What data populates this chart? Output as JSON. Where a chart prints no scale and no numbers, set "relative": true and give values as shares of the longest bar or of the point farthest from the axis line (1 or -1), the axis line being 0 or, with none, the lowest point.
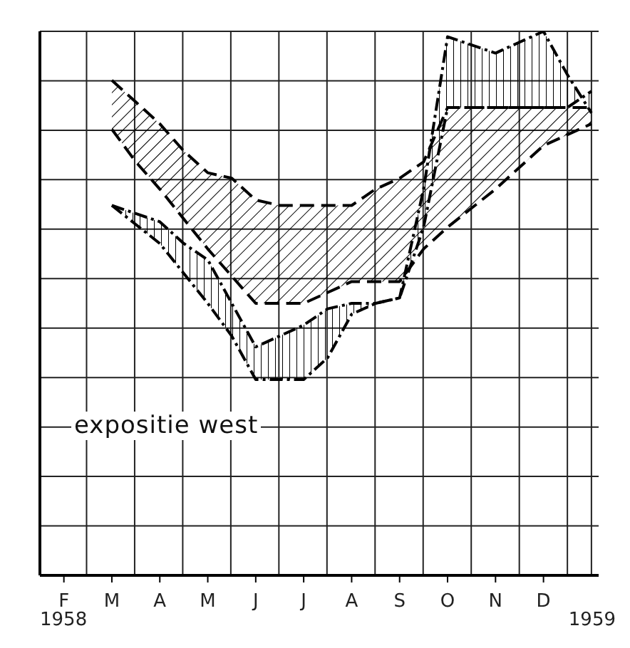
{
  "chart_data": {
    "type": "line",
    "relative": true,
    "grid": true,
    "marker": "none",
    "categories": [
      "F",
      null,
      "M",
      null,
      "A",
      null,
      "M",
      null,
      "J",
      null,
      "J",
      null,
      "A",
      null,
      "S",
      null,
      "O",
      null,
      "N",
      null,
      "D",
      null,
      null
    ],
    "series": [
      {
        "color": "#000000",
        "line_style": "dashed",
        "values": [
          null,
          null,
          0.91,
          0.87,
          0.83,
          0.78,
          0.74,
          0.73,
          0.69,
          0.68,
          0.68,
          0.68,
          0.68,
          0.71,
          0.73,
          0.76,
          0.86,
          0.86,
          0.86,
          0.86,
          0.86,
          0.86,
          0.86
        ],
        "upper": [
          null,
          null,
          0.91,
          0.87,
          0.83,
          0.78,
          0.74,
          0.73,
          0.69,
          0.68,
          0.68,
          0.68,
          0.68,
          0.71,
          0.73,
          0.76,
          0.86,
          0.86,
          0.86,
          0.86,
          0.86,
          0.86,
          0.86
        ],
        "lower": [
          null,
          null,
          0.82,
          0.76,
          0.71,
          0.655,
          0.6,
          0.55,
          0.5,
          0.5,
          0.5,
          0.52,
          0.54,
          0.54,
          0.54,
          0.6,
          0.64,
          0.675,
          0.71,
          0.75,
          0.79,
          0.81,
          0.83
        ]
      },
      {
        "color": "#000000",
        "line_style": "dashed",
        "values": [
          null,
          null,
          0.82,
          0.76,
          0.71,
          0.655,
          0.6,
          0.55,
          0.5,
          0.5,
          0.5,
          0.52,
          0.54,
          0.54,
          0.54,
          0.6,
          0.64,
          0.675,
          0.71,
          0.75,
          0.79,
          0.81,
          0.83
        ]
      },
      {
        "color": "#000000",
        "line_style": "dotted",
        "values": [
          null,
          null,
          0.68,
          0.665,
          0.65,
          0.61,
          0.58,
          0.5,
          0.42,
          0.44,
          0.46,
          0.49,
          0.5,
          0.5,
          0.51,
          0.71,
          0.99,
          0.975,
          0.96,
          0.98,
          1,
          0.92,
          0.85
        ],
        "upper": [
          null,
          null,
          0.68,
          0.665,
          0.65,
          0.61,
          0.58,
          0.5,
          0.42,
          0.44,
          0.46,
          0.49,
          0.5,
          0.5,
          0.51,
          0.71,
          0.99,
          0.975,
          0.96,
          0.98,
          1,
          0.92,
          0.85
        ],
        "lower": [
          null,
          null,
          0.68,
          0.645,
          0.61,
          0.555,
          0.5,
          0.44,
          0.36,
          0.36,
          0.36,
          0.4,
          0.48,
          0.5,
          0.51,
          0.64,
          0.86,
          0.86,
          0.86,
          0.86,
          0.86,
          0.86,
          0.89
        ]
      },
      {
        "color": "#000000",
        "line_style": "dotted",
        "values": [
          null,
          null,
          0.68,
          0.645,
          0.61,
          0.555,
          0.5,
          0.44,
          0.36,
          0.36,
          0.36,
          0.4,
          0.48,
          0.5,
          0.51,
          0.64,
          0.86,
          0.86,
          0.86,
          0.86,
          0.86,
          0.86,
          0.89
        ]
      }
    ],
    "annotations": [
      "expositie west",
      "1958",
      "1959"
    ]
  }
}
